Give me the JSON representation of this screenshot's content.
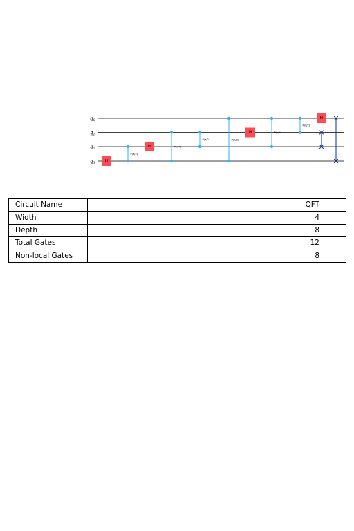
{
  "circuit": {
    "qubits": [
      {
        "base": "q",
        "sub": "0"
      },
      {
        "base": "q",
        "sub": "1"
      },
      {
        "base": "q",
        "sub": "2"
      },
      {
        "base": "q",
        "sub": "3"
      }
    ],
    "colors": {
      "hadamard": "#fa4d56",
      "control_phase": "#33b1ff",
      "swap": "#002d9c",
      "wire": "#000000"
    },
    "gates": [
      {
        "type": "h",
        "qubit": 3,
        "label": "H"
      },
      {
        "type": "cp",
        "qubits": [
          2,
          3
        ],
        "label": "P(π/2)"
      },
      {
        "type": "h",
        "qubit": 2,
        "label": "H"
      },
      {
        "type": "cp",
        "qubits": [
          1,
          3
        ],
        "label": "P(π/4)"
      },
      {
        "type": "cp",
        "qubits": [
          1,
          2
        ],
        "label": "P(π/2)"
      },
      {
        "type": "cp",
        "qubits": [
          0,
          3
        ],
        "label": "P(π/8)"
      },
      {
        "type": "h",
        "qubit": 1,
        "label": "H"
      },
      {
        "type": "cp",
        "qubits": [
          0,
          2
        ],
        "label": "P(π/4)"
      },
      {
        "type": "cp",
        "qubits": [
          0,
          1
        ],
        "label": "P(π/2)"
      },
      {
        "type": "h",
        "qubit": 0,
        "label": "H"
      },
      {
        "type": "swap",
        "qubits": [
          1,
          2
        ]
      },
      {
        "type": "swap",
        "qubits": [
          0,
          3
        ]
      }
    ]
  },
  "stats": [
    {
      "key": "Circuit Name",
      "value": "QFT"
    },
    {
      "key": "Width",
      "value": "4"
    },
    {
      "key": "Depth",
      "value": "8"
    },
    {
      "key": "Total Gates",
      "value": "12"
    },
    {
      "key": "Non-local Gates",
      "value": "8"
    }
  ]
}
